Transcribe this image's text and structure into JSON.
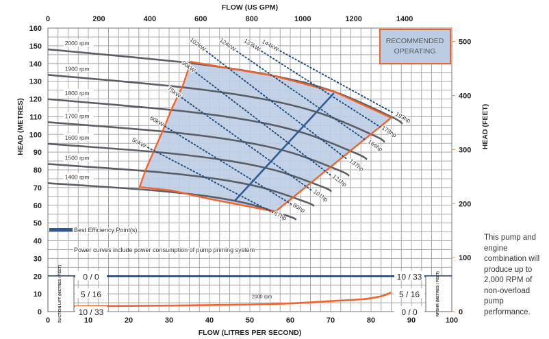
{
  "chart_data": {
    "type": "line",
    "title": "",
    "xlabel": "FLOW (LITRES PER SECOND)",
    "x2label": "FLOW (US GPM)",
    "ylabel": "HEAD (METRES)",
    "y2label": "HEAD (FEET)",
    "xlim": [
      0,
      100
    ],
    "ylim": [
      0,
      160
    ],
    "x_ticks": [
      0,
      10,
      20,
      30,
      40,
      50,
      60,
      70,
      80,
      90,
      100
    ],
    "y_ticks": [
      0,
      10,
      20,
      30,
      40,
      50,
      60,
      70,
      80,
      90,
      100,
      110,
      120,
      130,
      140,
      150,
      160
    ],
    "x2_ticks": [
      0,
      200,
      400,
      600,
      800,
      1000,
      1200,
      1400
    ],
    "y2_ticks": [
      0,
      100,
      200,
      300,
      400,
      500
    ],
    "grid": true,
    "colors": {
      "rpm_curve": "#5a5f66",
      "region_fill": "#bccde3",
      "region_edge": "#f4622a",
      "bep": "#2d5b93",
      "power": "#1f4e85",
      "npsh": "#f4622a",
      "suction": "#1f3f6e"
    },
    "rpm_curves": [
      {
        "name": "2000 rpm",
        "points": [
          [
            0,
            148
          ],
          [
            35,
            140.3
          ],
          [
            56,
            133
          ],
          [
            71,
            124
          ],
          [
            85,
            110
          ],
          [
            87.8,
            106
          ]
        ]
      },
      {
        "name": "1900 rpm",
        "points": [
          [
            0,
            133.6
          ],
          [
            33.3,
            126.6
          ],
          [
            53.2,
            120
          ],
          [
            67.5,
            111.9
          ],
          [
            80.8,
            99.3
          ],
          [
            83.4,
            95.7
          ]
        ]
      },
      {
        "name": "1800 rpm",
        "points": [
          [
            0,
            119.9
          ],
          [
            31.5,
            113.6
          ],
          [
            50.4,
            107.7
          ],
          [
            63.9,
            100.4
          ],
          [
            76.5,
            89.1
          ],
          [
            79,
            85.9
          ]
        ]
      },
      {
        "name": "1700 rpm",
        "points": [
          [
            0,
            106.9
          ],
          [
            29.8,
            101.4
          ],
          [
            47.6,
            96.1
          ],
          [
            60.4,
            89.6
          ],
          [
            72.3,
            79.5
          ],
          [
            74.6,
            76.6
          ]
        ]
      },
      {
        "name": "1600 rpm",
        "points": [
          [
            0,
            94.7
          ],
          [
            28,
            89.8
          ],
          [
            44.8,
            85.1
          ],
          [
            56.8,
            79.4
          ],
          [
            68,
            70.4
          ],
          [
            70.2,
            67.8
          ]
        ]
      },
      {
        "name": "1500 rpm",
        "points": [
          [
            0,
            83.3
          ],
          [
            26.3,
            78.9
          ],
          [
            42,
            74.8
          ],
          [
            53.3,
            69.8
          ],
          [
            63.8,
            61.9
          ],
          [
            65.9,
            59.6
          ]
        ]
      },
      {
        "name": "1400 rpm",
        "points": [
          [
            0,
            72.5
          ],
          [
            24.5,
            68.7
          ],
          [
            39.2,
            65.2
          ],
          [
            49.7,
            60.8
          ],
          [
            59.5,
            53.9
          ],
          [
            61.5,
            51.9
          ]
        ]
      }
    ],
    "power_lines": [
      {
        "kw": "50kW",
        "hp": "67hp",
        "start": [
          24,
          93.5
        ],
        "end": [
          55.6,
          56
        ]
      },
      {
        "kw": "60kW",
        "hp": "80hp",
        "start": [
          28.3,
          105.5
        ],
        "end": [
          60.2,
          60.7
        ]
      },
      {
        "kw": "75kW",
        "hp": "101hp",
        "start": [
          32.5,
          121.7
        ],
        "end": [
          65.3,
          68.4
        ]
      },
      {
        "kw": "90kW",
        "hp": "121hp",
        "start": [
          36,
          136
        ],
        "end": [
          70,
          77
        ]
      },
      {
        "kw": "102kW",
        "hp": "137hp",
        "start": [
          38.6,
          148
        ],
        "end": [
          74.2,
          85.8
        ]
      },
      {
        "kw": "124kW",
        "hp": "166hp",
        "start": [
          46.1,
          148
        ],
        "end": [
          78.8,
          96.6
        ]
      },
      {
        "kw": "133kW",
        "hp": "178hp",
        "start": [
          52.2,
          148
        ],
        "end": [
          82.2,
          104.3
        ]
      },
      {
        "kw": "144kW",
        "hp": "193hp",
        "start": [
          56.8,
          148
        ],
        "end": [
          85.6,
          112
        ]
      }
    ],
    "recommended_region": [
      [
        22.7,
        70.3
      ],
      [
        24.2,
        80
      ],
      [
        28.5,
        102.4
      ],
      [
        30.8,
        115.2
      ],
      [
        33.4,
        127.5
      ],
      [
        35.4,
        141
      ],
      [
        56,
        133
      ],
      [
        71,
        124
      ],
      [
        85,
        109.4
      ],
      [
        56.3,
        56.4
      ],
      [
        40,
        63.6
      ],
      [
        30.5,
        68.4
      ],
      [
        22.7,
        70.3
      ]
    ],
    "bep_line": [
      [
        46.3,
        62.6
      ],
      [
        70.8,
        123.3
      ]
    ],
    "npshr_curve": {
      "name": "2000 rpm",
      "points": [
        [
          6,
          3
        ],
        [
          30,
          3.4
        ],
        [
          50,
          4
        ],
        [
          60,
          4.6
        ],
        [
          70,
          5.9
        ],
        [
          78,
          7
        ],
        [
          81,
          8
        ],
        [
          83,
          9
        ],
        [
          85,
          10.8
        ]
      ]
    },
    "suction_lift_line": 20,
    "suction_lift_labels": [
      "0 / 0",
      "5 / 16",
      "10 / 33"
    ],
    "npshr_labels": [
      "10 / 33",
      "5 / 16",
      "0 / 0"
    ],
    "suction_lift_title": "SUCTION LIFT (METRES / FEET)",
    "npshr_title": "NPSHR (METRES / FEET)",
    "legend": {
      "bep_label": "Best Efficiency Point(s)",
      "placement": "bottom-left"
    },
    "annotation": "Power curves include power consumption of pump priming system",
    "region_label": [
      "RECOMMENDED",
      "OPERATING"
    ]
  },
  "side_note": "This pump and engine combination will produce up to 2,000 RPM of non-overload pump performance."
}
